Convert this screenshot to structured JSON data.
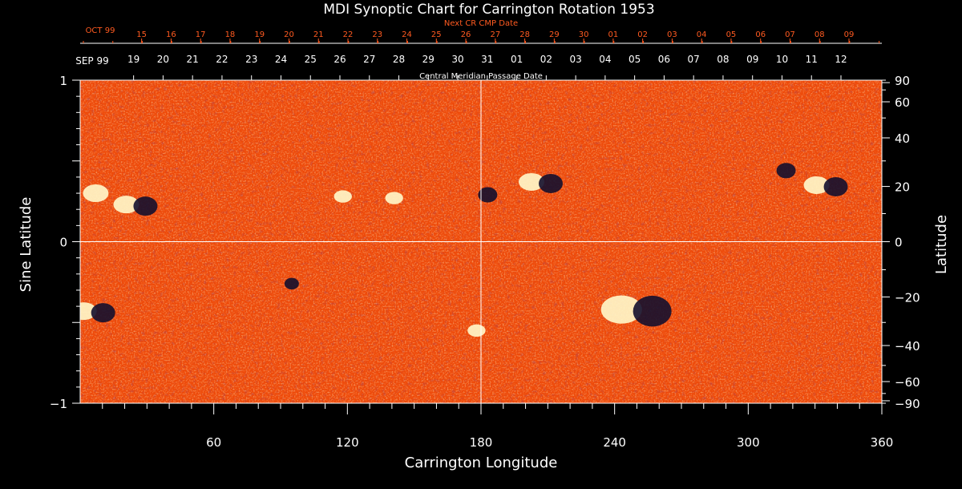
{
  "chart_data": {
    "type": "heatmap",
    "title": "MDI Synoptic Chart for Carrington Rotation 1953",
    "xlabel": "Carrington Longitude",
    "ylabel_left": "Sine Latitude",
    "ylabel_right": "Latitude",
    "xlim": [
      0,
      360
    ],
    "ylim": [
      -1,
      1
    ],
    "x_ticks": [
      60,
      120,
      180,
      240,
      300,
      360
    ],
    "y_ticks_left": [
      1,
      0,
      -1
    ],
    "y_ticks_left_labels": [
      "1",
      "0",
      "−1"
    ],
    "y_ticks_right": [
      90,
      60,
      40,
      20,
      0,
      -20,
      -40,
      -60,
      -90
    ],
    "y_ticks_right_labels": [
      "90",
      "60",
      "40",
      "20",
      "0",
      "−20",
      "−40",
      "−60",
      "−90"
    ],
    "crosshair": {
      "x": 180,
      "y": 0
    },
    "top_axis_cmp": {
      "label": "Central Meridian Passage Date",
      "month_start": "SEP 99",
      "dates": [
        "12",
        "11",
        "10",
        "09",
        "08",
        "07",
        "06",
        "05",
        "04",
        "03",
        "02",
        "01",
        "31",
        "30",
        "29",
        "28",
        "27",
        "26",
        "25",
        "24",
        "23",
        "22",
        "21",
        "20",
        "19"
      ]
    },
    "top_axis_next": {
      "label": "Next CR CMP Date",
      "month_start": "OCT 99",
      "dates": [
        "09",
        "08",
        "07",
        "06",
        "05",
        "04",
        "03",
        "02",
        "01",
        "30",
        "29",
        "28",
        "27",
        "26",
        "25",
        "24",
        "23",
        "22",
        "21",
        "20",
        "19",
        "18",
        "17",
        "16",
        "15"
      ]
    },
    "colors": {
      "background": "#ee4a0a",
      "positive_polarity": "#fff6c8",
      "negative_polarity": "#14102e",
      "axes": "#ffffff",
      "next_axis": "#ff5a20"
    },
    "active_regions": [
      {
        "lon": 7,
        "sinlat": 0.3,
        "polarity": "positive",
        "strength": 1.0
      },
      {
        "lon": 25,
        "sinlat": 0.23,
        "polarity": "mixed",
        "strength": 1.0
      },
      {
        "lon": 6,
        "sinlat": -0.43,
        "polarity": "mixed",
        "strength": 1.0
      },
      {
        "lon": 118,
        "sinlat": 0.28,
        "polarity": "positive",
        "strength": 0.7
      },
      {
        "lon": 141,
        "sinlat": 0.27,
        "polarity": "positive",
        "strength": 0.7
      },
      {
        "lon": 183,
        "sinlat": 0.3,
        "polarity": "negative",
        "strength": 0.8
      },
      {
        "lon": 207,
        "sinlat": 0.37,
        "polarity": "mixed",
        "strength": 1.0
      },
      {
        "lon": 250,
        "sinlat": -0.42,
        "polarity": "mixed",
        "strength": 1.6
      },
      {
        "lon": 178,
        "sinlat": -0.55,
        "polarity": "positive",
        "strength": 0.7
      },
      {
        "lon": 335,
        "sinlat": 0.35,
        "polarity": "mixed",
        "strength": 1.0
      },
      {
        "lon": 95,
        "sinlat": -0.25,
        "polarity": "negative",
        "strength": 0.6
      },
      {
        "lon": 317,
        "sinlat": 0.45,
        "polarity": "negative",
        "strength": 0.8
      }
    ]
  }
}
